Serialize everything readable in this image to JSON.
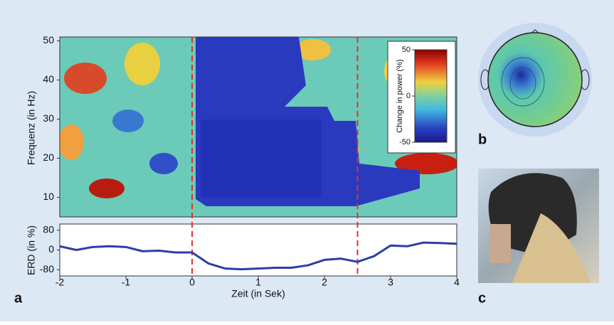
{
  "chart_data": [
    {
      "type": "heatmap",
      "ylabel": "Frequenz (in Hz)",
      "xlim": [
        -2,
        4
      ],
      "ylim": [
        5,
        51
      ],
      "yticks": [
        10,
        20,
        30,
        40,
        50
      ],
      "markers": [
        0,
        2.5
      ],
      "marker_color": "#e0302a",
      "colorbar": {
        "label": "Change in power (%)",
        "lim": [
          -50,
          50
        ],
        "ticks": [
          50,
          0,
          -50
        ]
      }
    },
    {
      "type": "line",
      "xlabel": "Zeit (in Sek)",
      "ylabel": "ERD (in %)",
      "xlim": [
        -2,
        4
      ],
      "xticks": [
        -2,
        -1,
        0,
        1,
        2,
        3,
        4
      ],
      "ylim": [
        -105,
        105
      ],
      "yticks": [
        80,
        0,
        -80
      ],
      "color": "#2b3fa8",
      "x": [
        -2,
        -1.75,
        -1.5,
        -1.25,
        -1,
        -0.75,
        -0.5,
        -0.25,
        0,
        0.25,
        0.5,
        0.75,
        1,
        1.25,
        1.5,
        1.75,
        2,
        2.25,
        2.5,
        2.75,
        3,
        3.25,
        3.5,
        3.75,
        4
      ],
      "values": [
        15,
        0,
        12,
        15,
        12,
        -5,
        -3,
        -10,
        -10,
        -55,
        -75,
        -78,
        -75,
        -72,
        -72,
        -62,
        -40,
        -35,
        -48,
        -25,
        18,
        15,
        30,
        28,
        25
      ]
    }
  ],
  "panel_labels": [
    "a",
    "b",
    "c"
  ]
}
